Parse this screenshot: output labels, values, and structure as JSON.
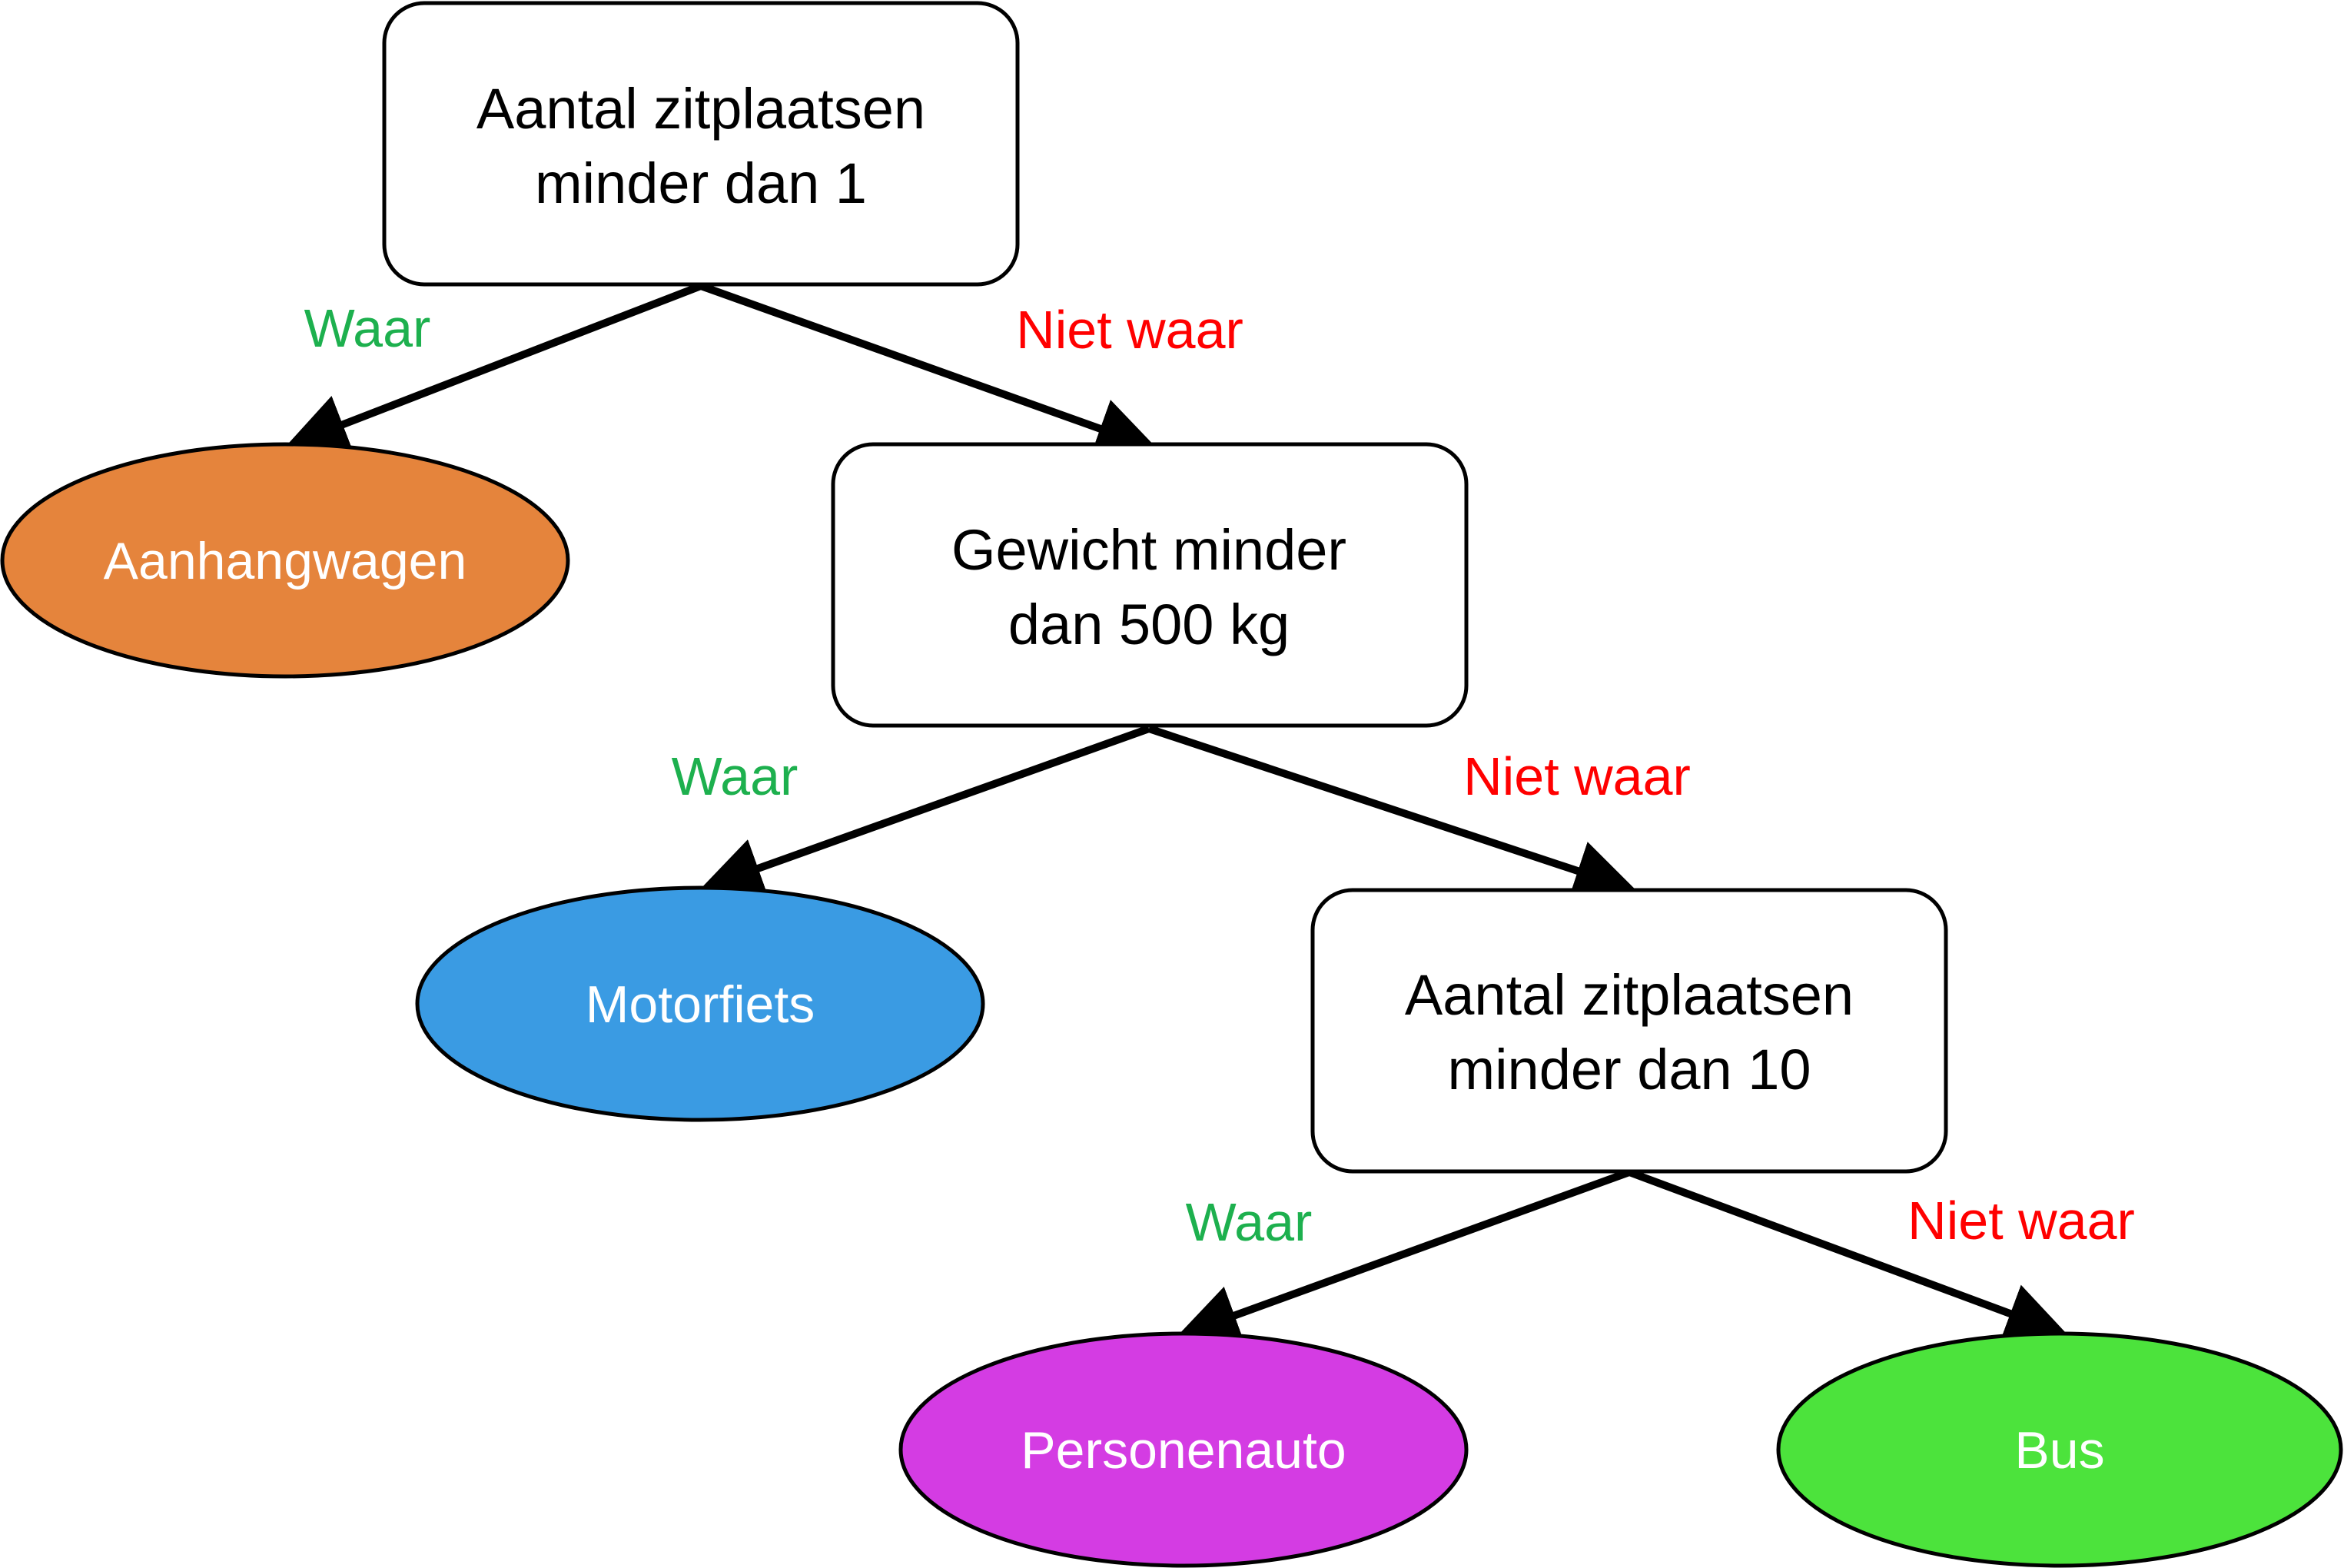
{
  "decisions": {
    "root": {
      "line1": "Aantal zitplaatsen",
      "line2": "minder dan 1"
    },
    "weight": {
      "line1": "Gewicht minder",
      "line2": "dan 500 kg"
    },
    "seats10": {
      "line1": "Aantal zitplaatsen",
      "line2": "minder dan 10"
    }
  },
  "leaves": {
    "trailer": {
      "label": "Aanhangwagen",
      "color": "#E5843C"
    },
    "motorcycle": {
      "label": "Motorfiets",
      "color": "#3A9BE3"
    },
    "car": {
      "label": "Personenauto",
      "color": "#D43CE3"
    },
    "bus": {
      "label": "Bus",
      "color": "#4CE33C"
    }
  },
  "branches": {
    "true_label": "Waar",
    "false_label": "Niet waar",
    "true_color": "#1DB04E",
    "false_color": "#FF0000"
  }
}
